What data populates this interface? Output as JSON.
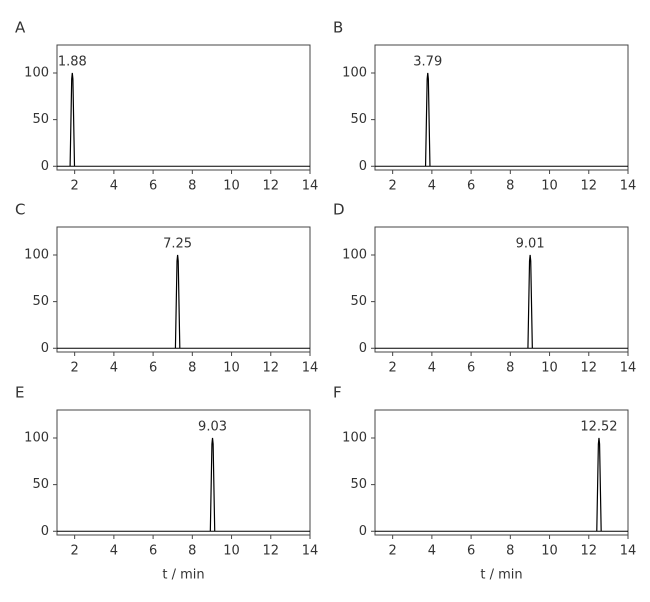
{
  "chart_data": [
    {
      "type": "chromatogram",
      "panel": "A",
      "x": [
        1.88
      ],
      "values": [
        100
      ],
      "color": "#000000",
      "xlim": [
        1.1,
        14
      ],
      "ylim": [
        -4,
        130
      ],
      "xticks": [
        2,
        4,
        6,
        8,
        10,
        12,
        14
      ],
      "yticks": [
        0,
        50,
        100
      ]
    },
    {
      "type": "chromatogram",
      "panel": "B",
      "x": [
        3.79
      ],
      "values": [
        100
      ],
      "color": "#000000",
      "xlim": [
        1.1,
        14
      ],
      "ylim": [
        -4,
        130
      ],
      "xticks": [
        2,
        4,
        6,
        8,
        10,
        12,
        14
      ],
      "yticks": [
        0,
        50,
        100
      ]
    },
    {
      "type": "chromatogram",
      "panel": "C",
      "x": [
        7.25
      ],
      "values": [
        100
      ],
      "color": "#000000",
      "xlim": [
        1.1,
        14
      ],
      "ylim": [
        -4,
        130
      ],
      "xticks": [
        2,
        4,
        6,
        8,
        10,
        12,
        14
      ],
      "yticks": [
        0,
        50,
        100
      ]
    },
    {
      "type": "chromatogram",
      "panel": "D",
      "x": [
        9.01
      ],
      "values": [
        100
      ],
      "color": "#000000",
      "xlim": [
        1.1,
        14
      ],
      "ylim": [
        -4,
        130
      ],
      "xticks": [
        2,
        4,
        6,
        8,
        10,
        12,
        14
      ],
      "yticks": [
        0,
        50,
        100
      ]
    },
    {
      "type": "chromatogram",
      "panel": "E",
      "x": [
        9.03
      ],
      "values": [
        100
      ],
      "color": "#000000",
      "xlim": [
        1.1,
        14
      ],
      "ylim": [
        -4,
        130
      ],
      "xticks": [
        2,
        4,
        6,
        8,
        10,
        12,
        14
      ],
      "yticks": [
        0,
        50,
        100
      ],
      "xlabel": "t / min"
    },
    {
      "type": "chromatogram",
      "panel": "F",
      "x": [
        12.52
      ],
      "values": [
        100
      ],
      "color": "#000000",
      "xlim": [
        1.1,
        14
      ],
      "ylim": [
        -4,
        130
      ],
      "xticks": [
        2,
        4,
        6,
        8,
        10,
        12,
        14
      ],
      "yticks": [
        0,
        50,
        100
      ],
      "xlabel": "t / min"
    }
  ]
}
